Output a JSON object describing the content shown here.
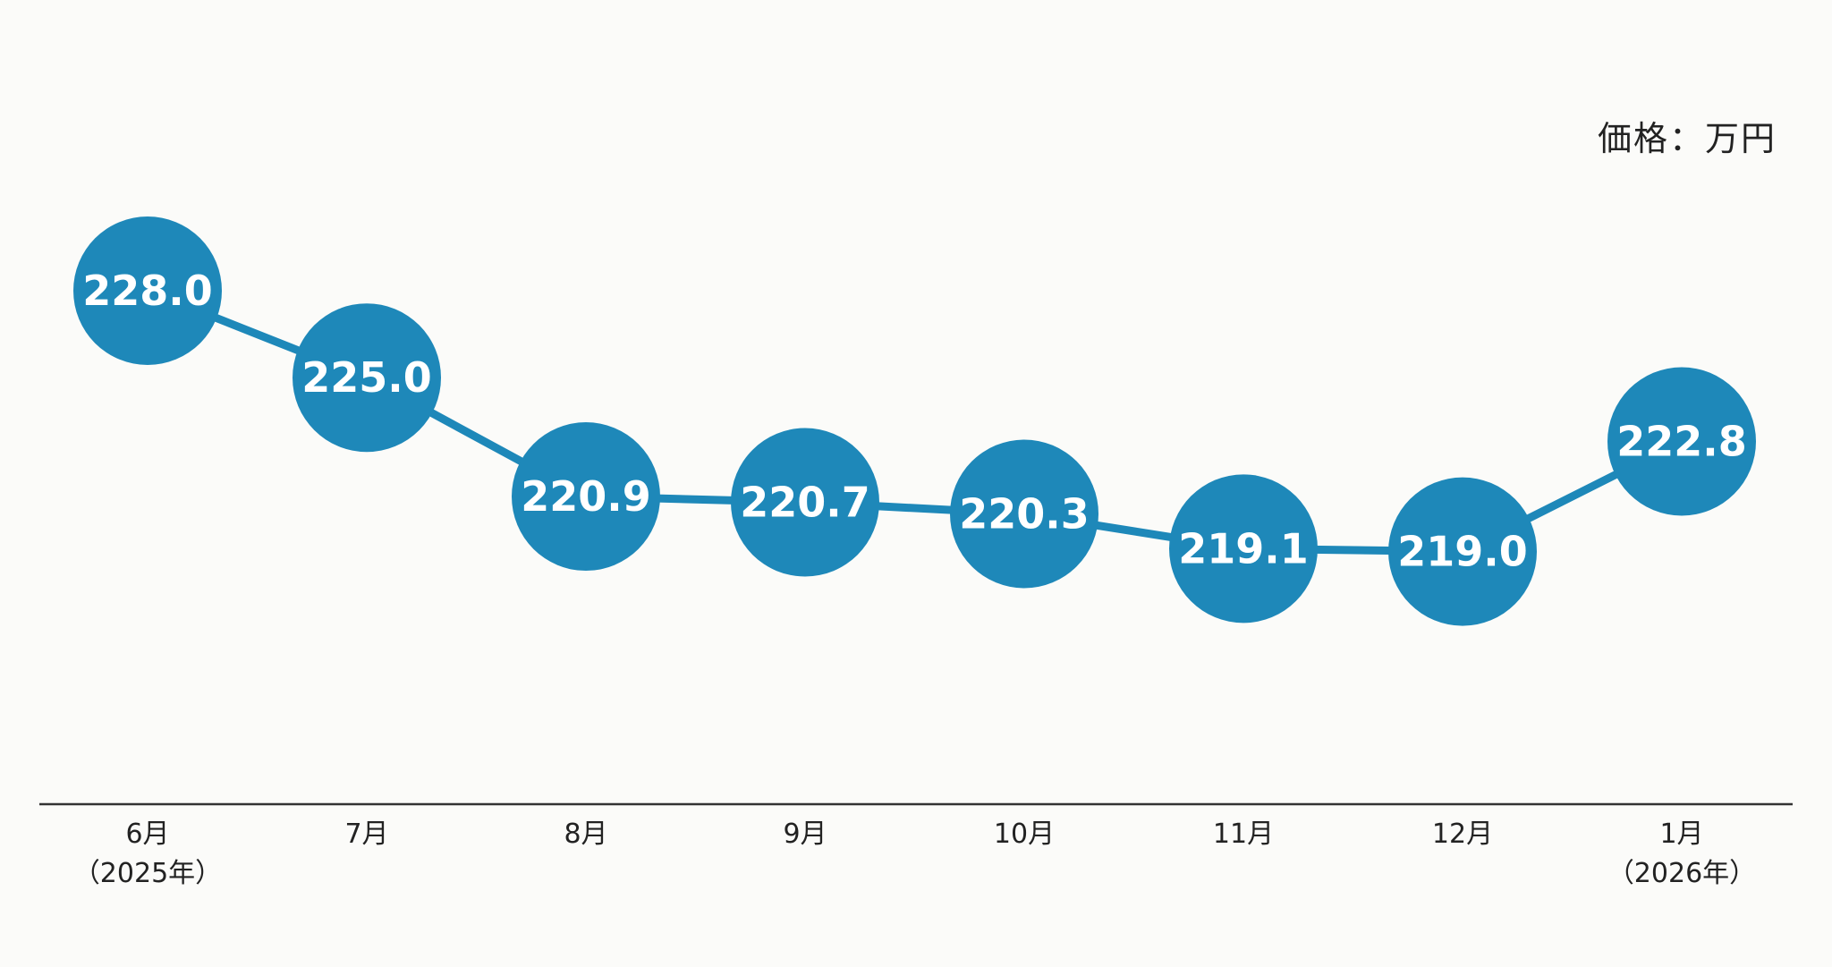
{
  "unit_label": "価格：万円",
  "colors": {
    "marker": "#1e88b9",
    "line": "#1e88b9",
    "label_text": "#ffffff",
    "axis": "#333333",
    "background": "#fbfbf9"
  },
  "chart_data": {
    "type": "line",
    "title": "",
    "xlabel": "",
    "ylabel": "",
    "categories": [
      "6月",
      "7月",
      "8月",
      "9月",
      "10月",
      "11月",
      "12月",
      "1月"
    ],
    "category_sublabels": [
      "（2025年）",
      "",
      "",
      "",
      "",
      "",
      "",
      "（2026年）"
    ],
    "series": [
      {
        "values": [
          228.0,
          225.0,
          220.9,
          220.7,
          220.3,
          219.1,
          219.0,
          222.8
        ],
        "labels": [
          "228.0",
          "225.0",
          "220.9",
          "220.7",
          "220.3",
          "219.1",
          "219.0",
          "222.8"
        ]
      }
    ],
    "grid": false,
    "legend": "none",
    "markers": "large-circle-with-value-label"
  }
}
